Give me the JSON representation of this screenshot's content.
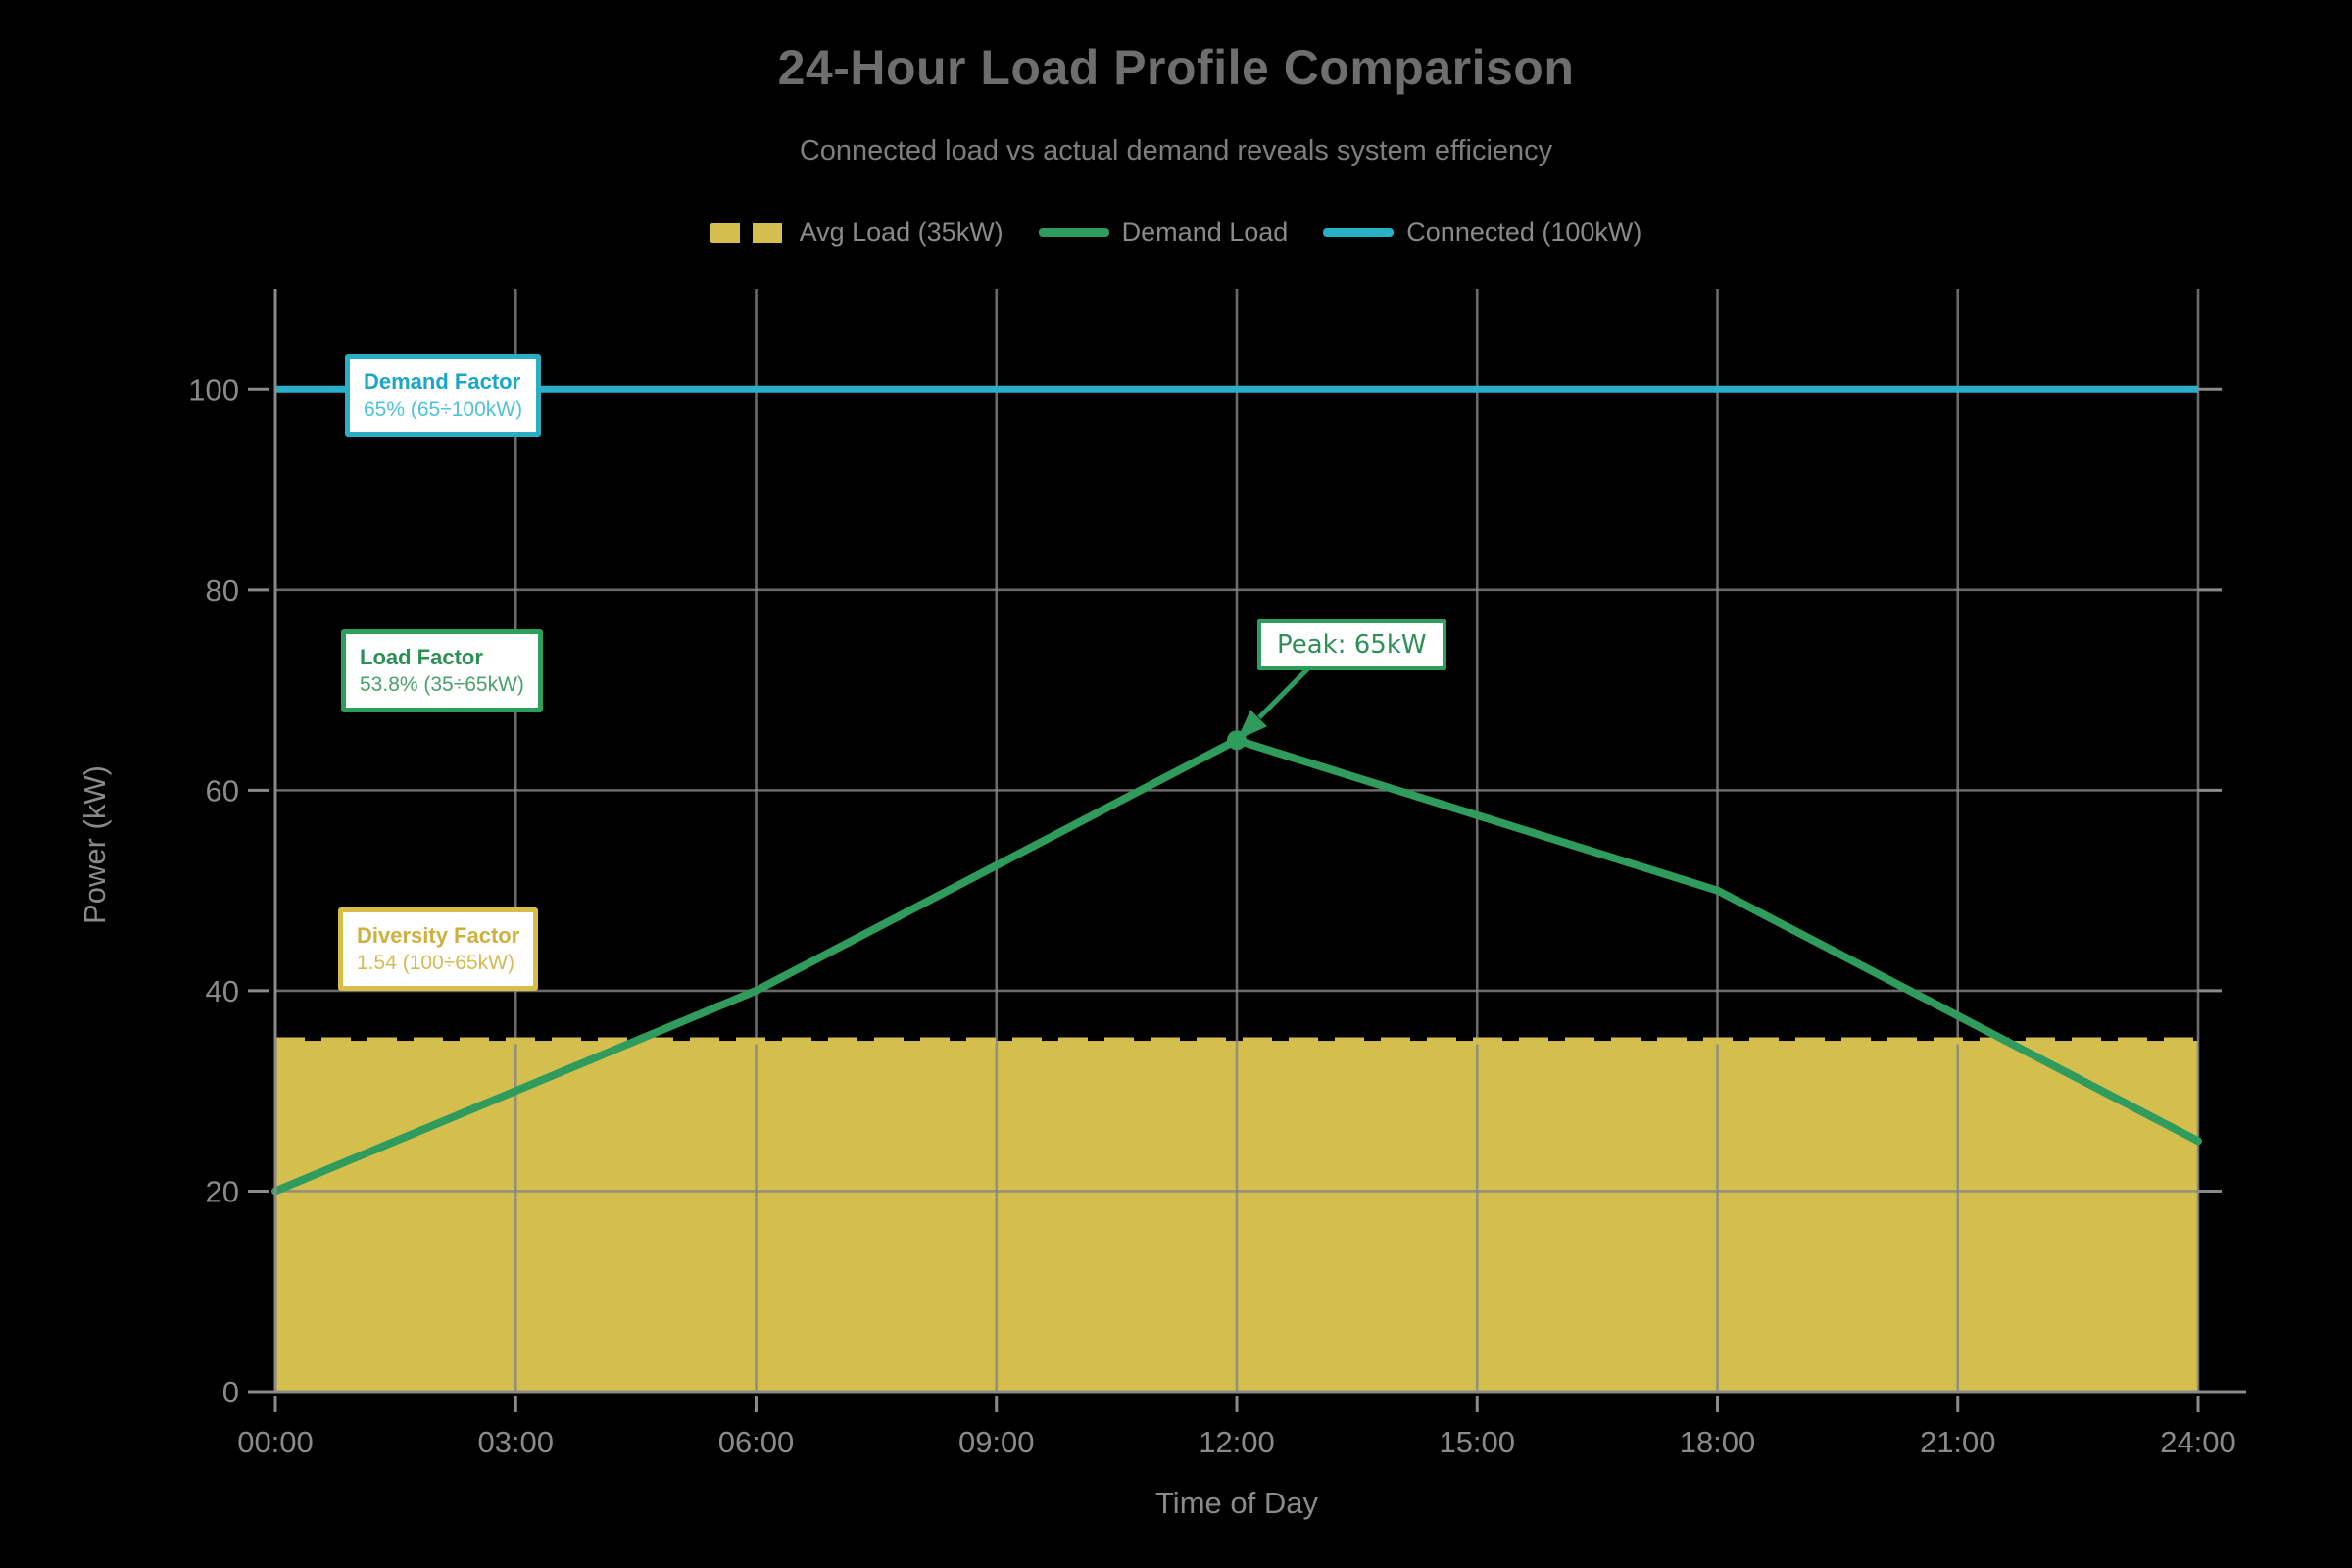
{
  "header": {
    "title": "24-Hour Load Profile Comparison",
    "subtitle": "Connected load vs actual demand reveals system efficiency"
  },
  "legend": [
    {
      "label": "Avg Load (35kW)",
      "color": "#d4bf4e",
      "style": "dash-patch"
    },
    {
      "label": "Demand Load",
      "color": "#2f9c5e",
      "style": "line"
    },
    {
      "label": "Connected (100kW)",
      "color": "#29afc8",
      "style": "line"
    }
  ],
  "chart_data": {
    "type": "line",
    "title": "24-Hour Load Profile Comparison",
    "xlabel": "Time of Day",
    "ylabel": "Power (kW)",
    "xlim": [
      0,
      24
    ],
    "ylim": [
      0,
      110
    ],
    "grid": true,
    "x_ticks": [
      "00:00",
      "03:00",
      "06:00",
      "09:00",
      "12:00",
      "15:00",
      "18:00",
      "21:00",
      "24:00"
    ],
    "x_tick_hours": [
      0,
      3,
      6,
      9,
      12,
      15,
      18,
      21,
      24
    ],
    "y_ticks": [
      0,
      20,
      40,
      60,
      80,
      100
    ],
    "series": [
      {
        "name": "Demand Load",
        "type": "line",
        "color": "#2f9c5e",
        "x": [
          0,
          6,
          12,
          18,
          24
        ],
        "values": [
          20,
          40,
          65,
          50,
          25
        ]
      },
      {
        "name": "Avg Load",
        "type": "area-dashed",
        "color": "#d4bf4e",
        "constant": 35,
        "fill_to": 0
      },
      {
        "name": "Connected",
        "type": "line",
        "color": "#29afc8",
        "constant": 100
      }
    ],
    "peak_point": {
      "x": 12,
      "y": 65
    }
  },
  "annotations": {
    "demand_factor": {
      "title": "Demand Factor",
      "value": "65% (65÷100kW)",
      "border_color": "#29aec6",
      "title_color": "#1aa7c6",
      "value_color": "#4cc2dc"
    },
    "load_factor": {
      "title": "Load Factor",
      "value": "53.8% (35÷65kW)",
      "border_color": "#2e9e5b",
      "title_color": "#2c8f55",
      "value_color": "#4aa06a"
    },
    "diversity_factor": {
      "title": "Diversity Factor",
      "value": "1.54 (100÷65kW)",
      "border_color": "#d8bd49",
      "title_color": "#cfb03f",
      "value_color": "#d4ba52"
    },
    "peak": {
      "label": "Peak: 65kW",
      "text_color": "#2e8f58",
      "border_color": "#2e9e5b"
    }
  },
  "style_colors": {
    "background": "#000000",
    "grid": "#858585",
    "spine": "#8a8a8a",
    "tick_label": "#8a8a8a",
    "title": "#6e6e6e",
    "subtitle": "#7e7e7e",
    "legend_text": "#8a8a8a"
  }
}
